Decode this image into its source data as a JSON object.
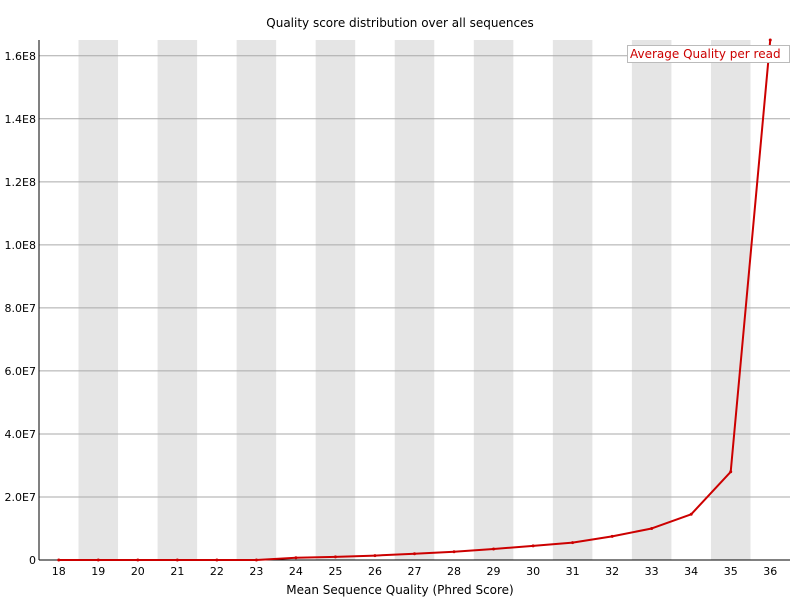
{
  "chart_data": {
    "type": "line",
    "title": "Quality score distribution over all sequences",
    "xlabel": "Mean Sequence Quality (Phred Score)",
    "ylabel": "",
    "categories": [
      "18",
      "19",
      "20",
      "21",
      "22",
      "23",
      "24",
      "25",
      "26",
      "27",
      "28",
      "29",
      "30",
      "31",
      "32",
      "33",
      "34",
      "35",
      "36"
    ],
    "y_tick_labels": [
      "0",
      "2.0E7",
      "4.0E7",
      "6.0E7",
      "8.0E7",
      "1.0E8",
      "1.2E8",
      "1.4E8",
      "1.6E8"
    ],
    "ylim": [
      0,
      165000000
    ],
    "grid": true,
    "legend_position": "top-right",
    "series": [
      {
        "name": "Average Quality per read",
        "color": "#cc0000",
        "values": [
          0,
          0,
          0,
          0,
          0,
          0,
          700000,
          1000000,
          1400000,
          2000000,
          2600000,
          3500000,
          4500000,
          5500000,
          7500000,
          10000000,
          14500000,
          28000000,
          165000000
        ]
      }
    ],
    "band_color": "#e5e5e5",
    "grid_color": "#aaaaaa"
  }
}
